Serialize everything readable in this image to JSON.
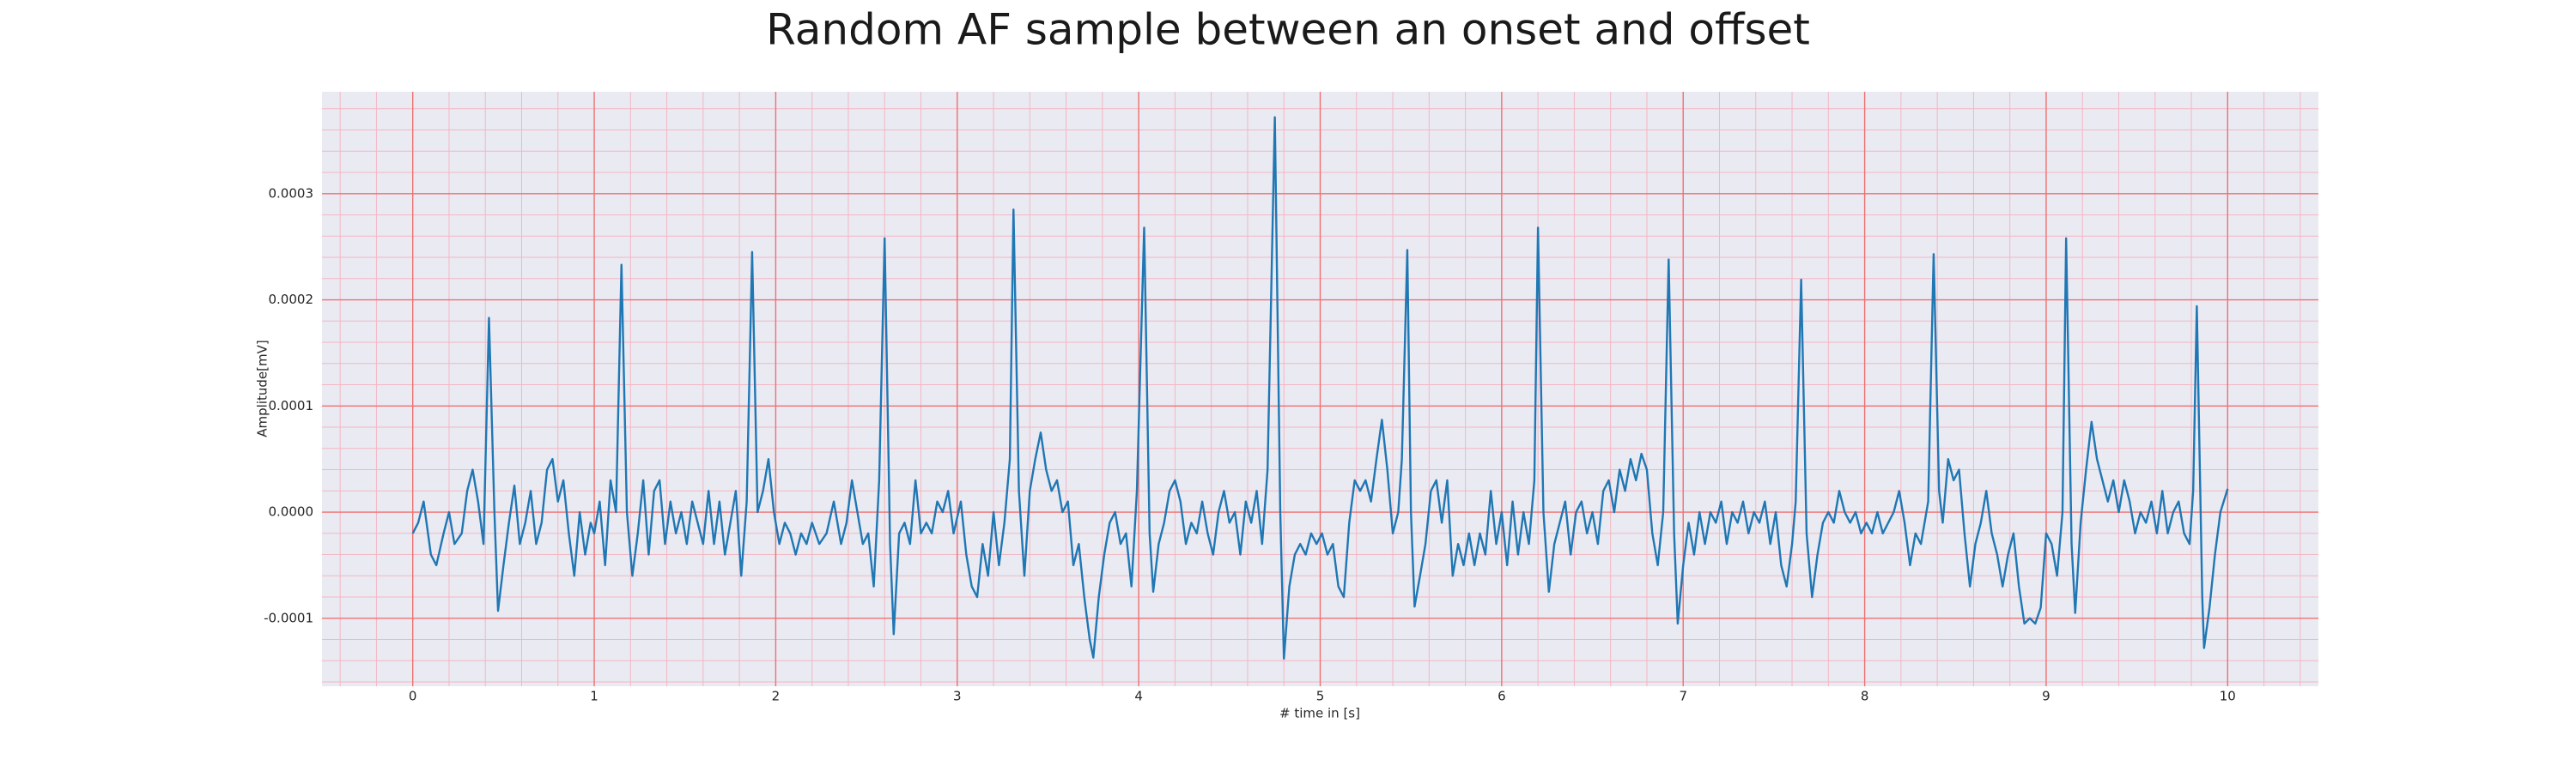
{
  "chart_data": {
    "type": "line",
    "title": "Random AF sample between an onset and offset",
    "x_label": "# time in [s]",
    "y_label": "Amplitude[mV]",
    "color": "#1f77b4",
    "grid": true,
    "minor_grid": true,
    "xlim": [
      -0.5,
      10.5
    ],
    "ylim": [
      -0.000164,
      0.000396
    ],
    "xticks": [
      0,
      1,
      2,
      3,
      4,
      5,
      6,
      7,
      8,
      9,
      10
    ],
    "yticks": [
      -0.0001,
      {
        "value": 0,
        "label": "0.0000"
      },
      0.0001,
      0.0002,
      0.0003
    ],
    "x": [
      0,
      0.03,
      0.06,
      0.1,
      0.13,
      0.17,
      0.2,
      0.23,
      0.27,
      0.3,
      0.33,
      0.36,
      0.39,
      0.42,
      0.45,
      0.47,
      0.5,
      0.53,
      0.56,
      0.59,
      0.62,
      0.65,
      0.68,
      0.71,
      0.74,
      0.77,
      0.8,
      0.83,
      0.86,
      0.89,
      0.92,
      0.95,
      0.98,
      1.0,
      1.03,
      1.06,
      1.09,
      1.12,
      1.15,
      1.18,
      1.21,
      1.24,
      1.27,
      1.3,
      1.33,
      1.36,
      1.39,
      1.42,
      1.45,
      1.48,
      1.51,
      1.54,
      1.57,
      1.6,
      1.63,
      1.66,
      1.69,
      1.72,
      1.75,
      1.78,
      1.81,
      1.84,
      1.87,
      1.9,
      1.93,
      1.96,
      1.99,
      2.02,
      2.05,
      2.08,
      2.11,
      2.14,
      2.17,
      2.2,
      2.24,
      2.28,
      2.32,
      2.36,
      2.39,
      2.42,
      2.45,
      2.48,
      2.51,
      2.54,
      2.57,
      2.6,
      2.63,
      2.65,
      2.68,
      2.71,
      2.74,
      2.77,
      2.8,
      2.83,
      2.86,
      2.89,
      2.92,
      2.95,
      2.98,
      3.02,
      3.05,
      3.08,
      3.11,
      3.14,
      3.17,
      3.2,
      3.23,
      3.26,
      3.29,
      3.31,
      3.34,
      3.37,
      3.4,
      3.43,
      3.46,
      3.49,
      3.52,
      3.55,
      3.58,
      3.61,
      3.64,
      3.67,
      3.7,
      3.73,
      3.75,
      3.78,
      3.81,
      3.84,
      3.87,
      3.9,
      3.93,
      3.96,
      3.99,
      4.03,
      4.06,
      4.08,
      4.11,
      4.14,
      4.17,
      4.2,
      4.23,
      4.26,
      4.29,
      4.32,
      4.35,
      4.38,
      4.41,
      4.44,
      4.47,
      4.5,
      4.53,
      4.56,
      4.59,
      4.62,
      4.65,
      4.68,
      4.71,
      4.75,
      4.78,
      4.8,
      4.83,
      4.86,
      4.89,
      4.92,
      4.95,
      4.98,
      5.01,
      5.04,
      5.07,
      5.1,
      5.13,
      5.16,
      5.19,
      5.22,
      5.25,
      5.28,
      5.31,
      5.34,
      5.37,
      5.4,
      5.43,
      5.45,
      5.48,
      5.5,
      5.52,
      5.55,
      5.58,
      5.61,
      5.64,
      5.67,
      5.7,
      5.73,
      5.76,
      5.79,
      5.82,
      5.85,
      5.88,
      5.91,
      5.94,
      5.97,
      6.0,
      6.03,
      6.06,
      6.09,
      6.12,
      6.15,
      6.18,
      6.2,
      6.23,
      6.26,
      6.29,
      6.32,
      6.35,
      6.38,
      6.41,
      6.44,
      6.47,
      6.5,
      6.53,
      6.56,
      6.59,
      6.62,
      6.65,
      6.68,
      6.71,
      6.74,
      6.77,
      6.8,
      6.83,
      6.86,
      6.89,
      6.92,
      6.95,
      6.97,
      7.0,
      7.03,
      7.06,
      7.09,
      7.12,
      7.15,
      7.18,
      7.21,
      7.24,
      7.27,
      7.3,
      7.33,
      7.36,
      7.39,
      7.42,
      7.45,
      7.48,
      7.51,
      7.54,
      7.57,
      7.6,
      7.62,
      7.65,
      7.68,
      7.71,
      7.74,
      7.77,
      7.8,
      7.83,
      7.86,
      7.89,
      7.92,
      7.95,
      7.98,
      8.01,
      8.04,
      8.07,
      8.1,
      8.13,
      8.16,
      8.19,
      8.22,
      8.25,
      8.28,
      8.31,
      8.35,
      8.38,
      8.41,
      8.43,
      8.46,
      8.49,
      8.52,
      8.55,
      8.58,
      8.61,
      8.64,
      8.67,
      8.7,
      8.73,
      8.76,
      8.79,
      8.82,
      8.85,
      8.88,
      8.91,
      8.94,
      8.97,
      9.0,
      9.03,
      9.06,
      9.09,
      9.11,
      9.14,
      9.16,
      9.19,
      9.22,
      9.25,
      9.28,
      9.31,
      9.34,
      9.37,
      9.4,
      9.43,
      9.46,
      9.49,
      9.52,
      9.55,
      9.58,
      9.61,
      9.64,
      9.67,
      9.7,
      9.73,
      9.76,
      9.79,
      9.81,
      9.83,
      9.86,
      9.87,
      9.9,
      9.93,
      9.96,
      10.0
    ],
    "values": [
      -2e-05,
      -1e-05,
      1e-05,
      -4e-05,
      -5e-05,
      -2e-05,
      0,
      -3e-05,
      -2e-05,
      2e-05,
      4e-05,
      1e-05,
      -3e-05,
      0.000183,
      0,
      -9.3e-05,
      -5e-05,
      -1e-05,
      2.5e-05,
      -3e-05,
      -1e-05,
      2e-05,
      -3e-05,
      -1e-05,
      4e-05,
      5e-05,
      1e-05,
      3e-05,
      -2e-05,
      -6e-05,
      0,
      -4e-05,
      -1e-05,
      -2e-05,
      1e-05,
      -5e-05,
      3e-05,
      0,
      0.000233,
      0,
      -6e-05,
      -2e-05,
      3e-05,
      -4e-05,
      2e-05,
      3e-05,
      -3e-05,
      1e-05,
      -2e-05,
      0,
      -3e-05,
      1e-05,
      -1e-05,
      -3e-05,
      2e-05,
      -3e-05,
      1e-05,
      -4e-05,
      -1e-05,
      2e-05,
      -6e-05,
      1e-05,
      0.000245,
      0,
      2e-05,
      5e-05,
      0,
      -3e-05,
      -1e-05,
      -2e-05,
      -4e-05,
      -2e-05,
      -3e-05,
      -1e-05,
      -3e-05,
      -2e-05,
      1e-05,
      -3e-05,
      -1e-05,
      3e-05,
      0,
      -3e-05,
      -2e-05,
      -7e-05,
      3e-05,
      0.000258,
      -3e-05,
      -0.000115,
      -2e-05,
      -1e-05,
      -3e-05,
      3e-05,
      -2e-05,
      -1e-05,
      -2e-05,
      1e-05,
      0,
      2e-05,
      -2e-05,
      1e-05,
      -4e-05,
      -7e-05,
      -8e-05,
      -3e-05,
      -6e-05,
      0,
      -5e-05,
      -1e-05,
      5e-05,
      0.000285,
      2e-05,
      -6e-05,
      2e-05,
      5e-05,
      7.5e-05,
      4e-05,
      2e-05,
      3e-05,
      0,
      1e-05,
      -5e-05,
      -3e-05,
      -8e-05,
      -0.00012,
      -0.000137,
      -8e-05,
      -4e-05,
      -1e-05,
      0,
      -3e-05,
      -2e-05,
      -7e-05,
      2e-05,
      0.000268,
      -2e-05,
      -7.5e-05,
      -3e-05,
      -1e-05,
      2e-05,
      3e-05,
      1e-05,
      -3e-05,
      -1e-05,
      -2e-05,
      1e-05,
      -2e-05,
      -4e-05,
      0,
      2e-05,
      -1e-05,
      0,
      -4e-05,
      1e-05,
      -1e-05,
      2e-05,
      -3e-05,
      4e-05,
      0.000372,
      0,
      -0.000138,
      -7e-05,
      -4e-05,
      -3e-05,
      -4e-05,
      -2e-05,
      -3e-05,
      -2e-05,
      -4e-05,
      -3e-05,
      -7e-05,
      -8e-05,
      -1e-05,
      3e-05,
      2e-05,
      3e-05,
      1e-05,
      5e-05,
      8.7e-05,
      4e-05,
      -2e-05,
      0,
      5e-05,
      0.000247,
      0,
      -8.9e-05,
      -6e-05,
      -3e-05,
      2e-05,
      3e-05,
      -1e-05,
      3e-05,
      -6e-05,
      -3e-05,
      -5e-05,
      -2e-05,
      -5e-05,
      -2e-05,
      -4e-05,
      2e-05,
      -3e-05,
      0,
      -5e-05,
      1e-05,
      -4e-05,
      0,
      -3e-05,
      3e-05,
      0.000268,
      0,
      -7.5e-05,
      -3e-05,
      -1e-05,
      1e-05,
      -4e-05,
      0,
      1e-05,
      -2e-05,
      0,
      -3e-05,
      2e-05,
      3e-05,
      0,
      4e-05,
      2e-05,
      5e-05,
      3e-05,
      5.5e-05,
      4e-05,
      -2e-05,
      -5e-05,
      0,
      0.000238,
      -2e-05,
      -0.000105,
      -5e-05,
      -1e-05,
      -4e-05,
      0,
      -3e-05,
      0,
      -1e-05,
      1e-05,
      -3e-05,
      0,
      -1e-05,
      1e-05,
      -2e-05,
      0,
      -1e-05,
      1e-05,
      -3e-05,
      0,
      -5e-05,
      -7e-05,
      -3e-05,
      1e-05,
      0.000219,
      -2e-05,
      -8e-05,
      -4e-05,
      -1e-05,
      0,
      -1e-05,
      2e-05,
      0,
      -1e-05,
      0,
      -2e-05,
      -1e-05,
      -2e-05,
      0,
      -2e-05,
      -1e-05,
      0,
      2e-05,
      -1e-05,
      -5e-05,
      -2e-05,
      -3e-05,
      1e-05,
      0.000243,
      2e-05,
      -1e-05,
      5e-05,
      3e-05,
      4e-05,
      -2e-05,
      -7e-05,
      -3e-05,
      -1e-05,
      2e-05,
      -2e-05,
      -4e-05,
      -7e-05,
      -4e-05,
      -2e-05,
      -7e-05,
      -0.000105,
      -0.0001,
      -0.000105,
      -9e-05,
      -2e-05,
      -3e-05,
      -6e-05,
      0,
      0.000258,
      -3e-05,
      -9.5e-05,
      -1e-05,
      4e-05,
      8.5e-05,
      5e-05,
      3e-05,
      1e-05,
      3e-05,
      0,
      3e-05,
      1e-05,
      -2e-05,
      0,
      -1e-05,
      1e-05,
      -2e-05,
      2e-05,
      -2e-05,
      0,
      1e-05,
      -2e-05,
      -3e-05,
      2e-05,
      0.000194,
      -8e-05,
      -0.000128,
      -9e-05,
      -4e-05,
      0,
      2.2e-05
    ]
  }
}
